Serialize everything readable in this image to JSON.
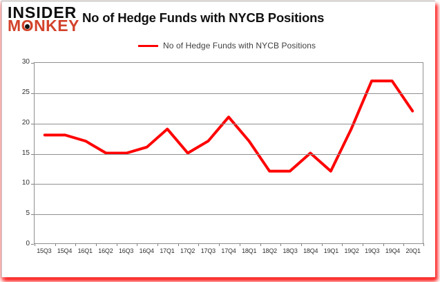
{
  "logo": {
    "line1": "INSIDER",
    "line2": "MONKEY",
    "brand_red": "#d2422a"
  },
  "header": {
    "title": "No of Hedge Funds with NYCB Positions"
  },
  "legend": {
    "label": "No of Hedge Funds with NYCB Positions",
    "line_color": "#ff0000"
  },
  "chart_data": {
    "type": "line",
    "title": "No of Hedge Funds with NYCB Positions",
    "categories": [
      "15Q3",
      "15Q4",
      "16Q1",
      "16Q2",
      "16Q3",
      "16Q4",
      "17Q1",
      "17Q2",
      "17Q3",
      "17Q4",
      "18Q1",
      "18Q2",
      "18Q3",
      "18Q4",
      "19Q1",
      "19Q2",
      "19Q3",
      "19Q4",
      "20Q1"
    ],
    "series": [
      {
        "name": "No of Hedge Funds with NYCB Positions",
        "color": "#ff0000",
        "values": [
          18,
          18,
          17,
          15,
          15,
          16,
          19,
          15,
          17,
          21,
          17,
          12,
          12,
          15,
          12,
          19,
          27,
          27,
          22
        ]
      }
    ],
    "xlabel": "",
    "ylabel": "",
    "ylim": [
      0,
      30
    ],
    "yticks": [
      0,
      5,
      10,
      15,
      20,
      25,
      30
    ],
    "grid": true,
    "legend_position": "top-center",
    "gridline_color": "#8f8f8f",
    "line_width": 4
  }
}
